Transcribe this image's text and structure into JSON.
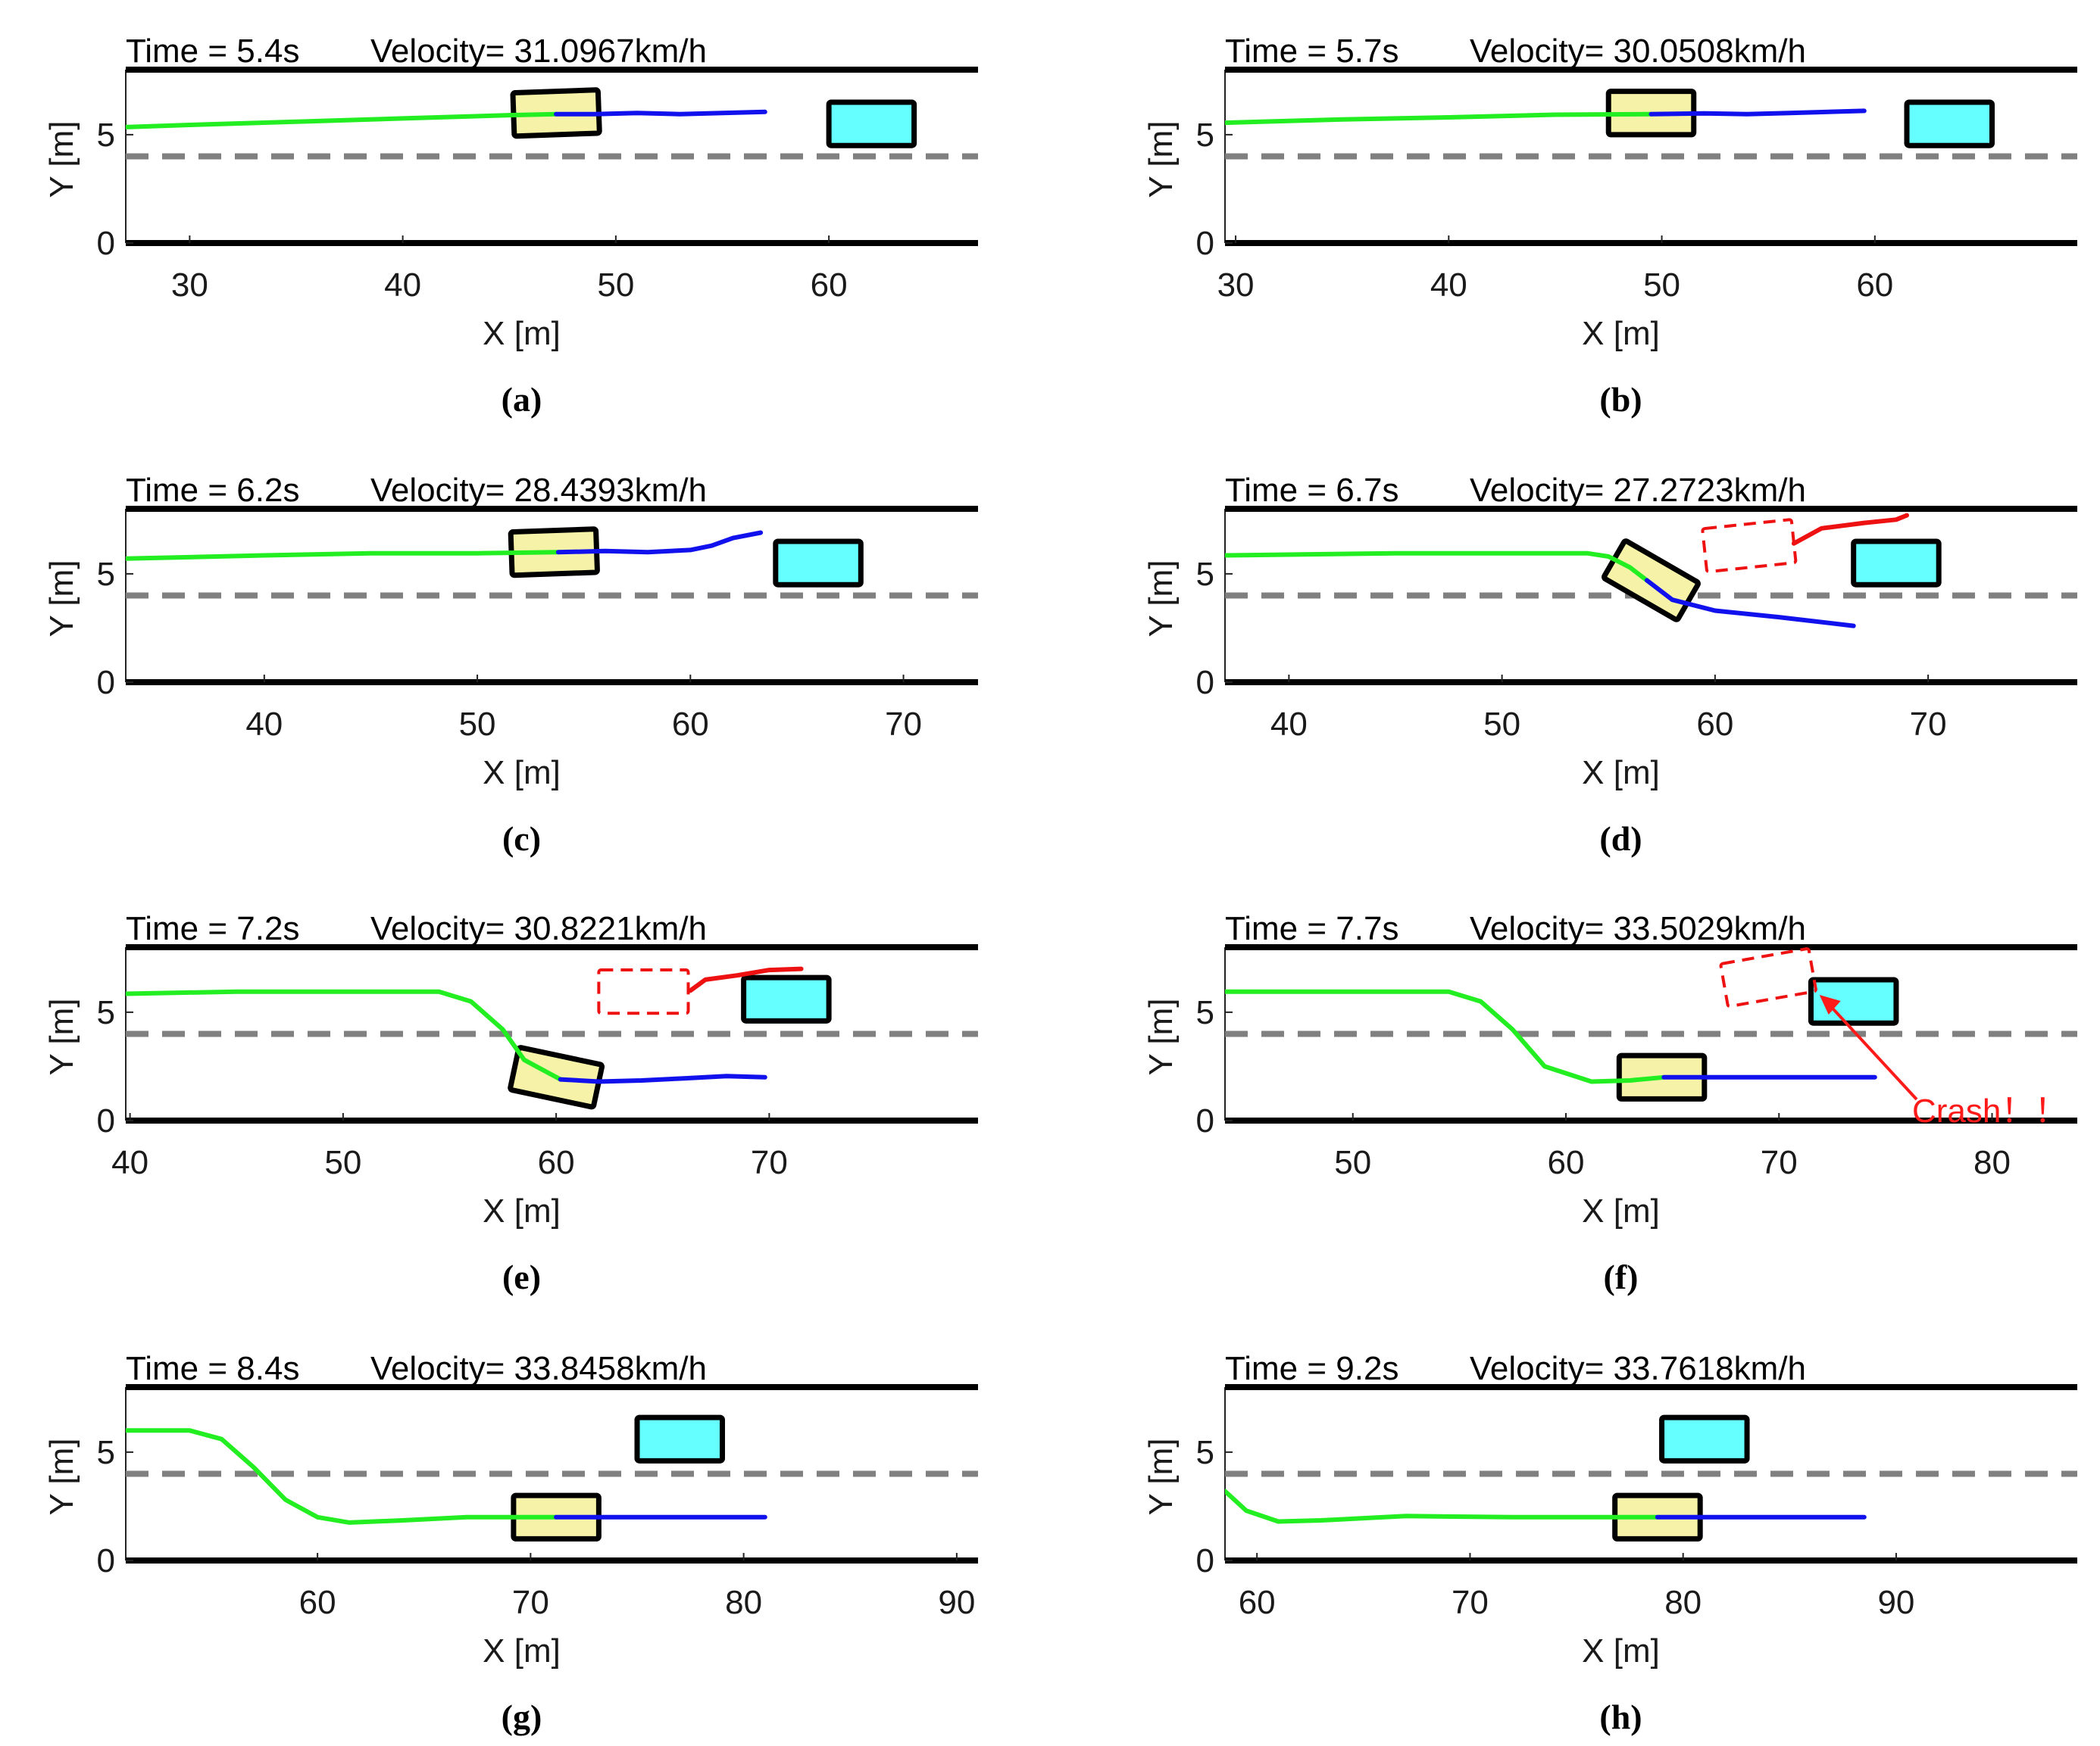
{
  "figure": {
    "colors": {
      "ego_history": "#22ee22",
      "ego_plan": "#1111ee",
      "obstacle_pred": "#ee1111",
      "ego_box": "#f6f3a8",
      "obstacle_box": "#66ffff",
      "lane_dash": "#808080",
      "road_edge": "#000000",
      "crash_text": "#ff1a1a"
    },
    "units": {
      "x": "m",
      "y": "m",
      "velocity": "km/h"
    }
  },
  "chart_data": [
    {
      "type": "line",
      "caption": "(a)",
      "time_text": "Time = 5.4s",
      "velocity_text": "Velocity= 31.0967km/h",
      "xlabel": "X [m]",
      "ylabel": "Y [m]",
      "xlim": [
        27,
        67
      ],
      "ylim": [
        0,
        8
      ],
      "xticks": [
        30,
        40,
        50,
        60
      ],
      "yticks": [
        0,
        5
      ],
      "road_edges": [
        0,
        8
      ],
      "lane_divider": 4,
      "series": [
        {
          "name": "ego-history",
          "role": "history",
          "points": [
            [
              27,
              5.35
            ],
            [
              30,
              5.45
            ],
            [
              35,
              5.6
            ],
            [
              40,
              5.75
            ],
            [
              45,
              5.9
            ],
            [
              47.2,
              5.95
            ]
          ]
        },
        {
          "name": "ego-planned",
          "role": "plan",
          "points": [
            [
              47.2,
              5.95
            ],
            [
              49,
              5.95
            ],
            [
              51,
              6.0
            ],
            [
              53,
              5.95
            ],
            [
              55,
              6.0
            ],
            [
              57,
              6.05
            ]
          ]
        }
      ],
      "ego": {
        "x": 47.2,
        "y": 6.0,
        "angle_deg": 2,
        "length": 4,
        "width": 2
      },
      "obstacle": {
        "x": 62,
        "y": 5.5,
        "length": 4,
        "width": 2
      }
    },
    {
      "type": "line",
      "caption": "(b)",
      "time_text": "Time = 5.7s",
      "velocity_text": "Velocity= 30.0508km/h",
      "xlabel": "X [m]",
      "ylabel": "Y [m]",
      "xlim": [
        29.5,
        69.5
      ],
      "ylim": [
        0,
        8
      ],
      "xticks": [
        30,
        40,
        50,
        60
      ],
      "yticks": [
        0,
        5
      ],
      "road_edges": [
        0,
        8
      ],
      "lane_divider": 4,
      "series": [
        {
          "name": "ego-history",
          "role": "history",
          "points": [
            [
              29.5,
              5.55
            ],
            [
              35,
              5.7
            ],
            [
              40,
              5.8
            ],
            [
              45,
              5.92
            ],
            [
              49.5,
              5.95
            ]
          ]
        },
        {
          "name": "ego-planned",
          "role": "plan",
          "points": [
            [
              49.5,
              5.95
            ],
            [
              52,
              5.98
            ],
            [
              54,
              5.95
            ],
            [
              56,
              6.0
            ],
            [
              59.5,
              6.1
            ]
          ]
        }
      ],
      "ego": {
        "x": 49.5,
        "y": 6.0,
        "angle_deg": 0,
        "length": 4,
        "width": 2
      },
      "obstacle": {
        "x": 63.5,
        "y": 5.5,
        "length": 4,
        "width": 2
      }
    },
    {
      "type": "line",
      "caption": "(c)",
      "time_text": "Time = 6.2s",
      "velocity_text": "Velocity= 28.4393km/h",
      "xlabel": "X [m]",
      "ylabel": "Y [m]",
      "xlim": [
        33.5,
        73.5
      ],
      "ylim": [
        0,
        8
      ],
      "xticks": [
        40,
        50,
        60,
        70
      ],
      "yticks": [
        0,
        5
      ],
      "road_edges": [
        0,
        8
      ],
      "lane_divider": 4,
      "series": [
        {
          "name": "ego-history",
          "role": "history",
          "points": [
            [
              33.5,
              5.7
            ],
            [
              40,
              5.85
            ],
            [
              45,
              5.95
            ],
            [
              50,
              5.95
            ],
            [
              53.8,
              6.0
            ]
          ]
        },
        {
          "name": "ego-planned",
          "role": "plan",
          "points": [
            [
              53.8,
              6.0
            ],
            [
              56,
              6.05
            ],
            [
              58,
              6.0
            ],
            [
              60,
              6.1
            ],
            [
              61,
              6.3
            ],
            [
              62,
              6.65
            ],
            [
              63.3,
              6.9
            ]
          ]
        }
      ],
      "ego": {
        "x": 53.6,
        "y": 6.0,
        "angle_deg": 2,
        "length": 4,
        "width": 2
      },
      "obstacle": {
        "x": 66,
        "y": 5.5,
        "length": 4,
        "width": 2
      }
    },
    {
      "type": "line",
      "caption": "(d)",
      "time_text": "Time = 6.7s",
      "velocity_text": "Velocity= 27.2723km/h",
      "xlabel": "X [m]",
      "ylabel": "Y [m]",
      "xlim": [
        37,
        77
      ],
      "ylim": [
        0,
        8
      ],
      "xticks": [
        40,
        50,
        60,
        70
      ],
      "yticks": [
        0,
        5
      ],
      "road_edges": [
        0,
        8
      ],
      "lane_divider": 4,
      "series": [
        {
          "name": "ego-history",
          "role": "history",
          "points": [
            [
              37,
              5.85
            ],
            [
              45,
              5.95
            ],
            [
              50,
              5.95
            ],
            [
              54,
              5.95
            ],
            [
              55,
              5.8
            ],
            [
              56,
              5.3
            ],
            [
              56.8,
              4.7
            ]
          ]
        },
        {
          "name": "ego-planned",
          "role": "plan",
          "points": [
            [
              56.8,
              4.7
            ],
            [
              58,
              3.8
            ],
            [
              60,
              3.3
            ],
            [
              63,
              3.0
            ],
            [
              66.5,
              2.6
            ]
          ]
        },
        {
          "name": "obstacle-predicted",
          "role": "prediction",
          "points": [
            [
              63.7,
              6.4
            ],
            [
              65,
              7.1
            ],
            [
              67,
              7.35
            ],
            [
              68.5,
              7.5
            ],
            [
              69,
              7.7
            ]
          ]
        }
      ],
      "ego": {
        "x": 57,
        "y": 4.7,
        "angle_deg": -30,
        "length": 4,
        "width": 2
      },
      "obstacle": {
        "x": 68.5,
        "y": 5.5,
        "length": 4,
        "width": 2
      },
      "predicted_box": {
        "x": 61.6,
        "y": 6.3,
        "angle_deg": 6,
        "length": 4.2,
        "width": 2
      }
    },
    {
      "type": "line",
      "caption": "(e)",
      "time_text": "Time = 7.2s",
      "velocity_text": "Velocity= 30.8221km/h",
      "xlabel": "X [m]",
      "ylabel": "Y [m]",
      "xlim": [
        39.8,
        79.8
      ],
      "ylim": [
        0,
        8
      ],
      "xticks": [
        40,
        50,
        60,
        70
      ],
      "yticks": [
        0,
        5
      ],
      "road_edges": [
        0,
        8
      ],
      "lane_divider": 4,
      "series": [
        {
          "name": "ego-history",
          "role": "history",
          "points": [
            [
              39.8,
              5.85
            ],
            [
              45,
              5.95
            ],
            [
              50,
              5.95
            ],
            [
              54.5,
              5.95
            ],
            [
              56,
              5.5
            ],
            [
              57.5,
              4.2
            ],
            [
              58.5,
              2.8
            ],
            [
              60.2,
              1.9
            ]
          ]
        },
        {
          "name": "ego-planned",
          "role": "plan",
          "points": [
            [
              60.2,
              1.9
            ],
            [
              62,
              1.8
            ],
            [
              64,
              1.85
            ],
            [
              66,
              1.95
            ],
            [
              68,
              2.05
            ],
            [
              69.8,
              2.0
            ]
          ]
        },
        {
          "name": "obstacle-predicted",
          "role": "prediction",
          "points": [
            [
              66.3,
              6.0
            ],
            [
              67,
              6.5
            ],
            [
              68.5,
              6.7
            ],
            [
              70,
              6.95
            ],
            [
              71.5,
              7.0
            ]
          ]
        }
      ],
      "ego": {
        "x": 60,
        "y": 2.0,
        "angle_deg": -12,
        "length": 4,
        "width": 2
      },
      "obstacle": {
        "x": 70.8,
        "y": 5.6,
        "length": 4,
        "width": 2
      },
      "predicted_box": {
        "x": 64.1,
        "y": 5.95,
        "angle_deg": 0,
        "length": 4.2,
        "width": 2
      }
    },
    {
      "type": "line",
      "caption": "(f)",
      "time_text": "Time = 7.7s",
      "velocity_text": "Velocity= 33.5029km/h",
      "xlabel": "X [m]",
      "ylabel": "Y [m]",
      "xlim": [
        44,
        84
      ],
      "ylim": [
        0,
        8
      ],
      "xticks": [
        50,
        60,
        70,
        80
      ],
      "yticks": [
        0,
        5
      ],
      "road_edges": [
        0,
        8
      ],
      "lane_divider": 4,
      "series": [
        {
          "name": "ego-history",
          "role": "history",
          "points": [
            [
              44,
              5.95
            ],
            [
              50,
              5.95
            ],
            [
              54.5,
              5.95
            ],
            [
              56,
              5.5
            ],
            [
              57.5,
              4.2
            ],
            [
              59,
              2.5
            ],
            [
              61.2,
              1.8
            ],
            [
              63,
              1.85
            ],
            [
              64.6,
              2.0
            ]
          ]
        },
        {
          "name": "ego-planned",
          "role": "plan",
          "points": [
            [
              64.6,
              2.0
            ],
            [
              68,
              2.0
            ],
            [
              72,
              2.0
            ],
            [
              74.5,
              2.0
            ]
          ]
        }
      ],
      "ego": {
        "x": 64.5,
        "y": 2.0,
        "angle_deg": 0,
        "length": 4,
        "width": 2
      },
      "obstacle": {
        "x": 73.5,
        "y": 5.5,
        "length": 4,
        "width": 2
      },
      "predicted_box": {
        "x": 69.5,
        "y": 6.6,
        "angle_deg": 10,
        "length": 4.2,
        "width": 2
      },
      "annotation": {
        "text": "Crash！！",
        "arrow_to": [
          71.9,
          5.8
        ]
      }
    },
    {
      "type": "line",
      "caption": "(g)",
      "time_text": "Time = 8.4s",
      "velocity_text": "Velocity= 33.8458km/h",
      "xlabel": "X [m]",
      "ylabel": "Y [m]",
      "xlim": [
        51,
        91
      ],
      "ylim": [
        0,
        8
      ],
      "xticks": [
        60,
        70,
        80,
        90
      ],
      "yticks": [
        0,
        5
      ],
      "road_edges": [
        0,
        8
      ],
      "lane_divider": 4,
      "series": [
        {
          "name": "ego-history",
          "role": "history",
          "points": [
            [
              51,
              6.0
            ],
            [
              54,
              6.0
            ],
            [
              55.5,
              5.6
            ],
            [
              57,
              4.3
            ],
            [
              58.5,
              2.8
            ],
            [
              60,
              2.0
            ],
            [
              61.5,
              1.75
            ],
            [
              64,
              1.85
            ],
            [
              67,
              2.0
            ],
            [
              71.2,
              2.0
            ]
          ]
        },
        {
          "name": "ego-planned",
          "role": "plan",
          "points": [
            [
              71.2,
              2.0
            ],
            [
              75,
              2.0
            ],
            [
              81,
              2.0
            ]
          ]
        }
      ],
      "ego": {
        "x": 71.2,
        "y": 2.0,
        "angle_deg": 0,
        "length": 4,
        "width": 2
      },
      "obstacle": {
        "x": 77,
        "y": 5.6,
        "length": 4,
        "width": 2
      }
    },
    {
      "type": "line",
      "caption": "(h)",
      "time_text": "Time = 9.2s",
      "velocity_text": "Velocity= 33.7618km/h",
      "xlabel": "X [m]",
      "ylabel": "Y [m]",
      "xlim": [
        58.5,
        98.5
      ],
      "ylim": [
        0,
        8
      ],
      "xticks": [
        60,
        70,
        80,
        90
      ],
      "yticks": [
        0,
        5
      ],
      "road_edges": [
        0,
        8
      ],
      "lane_divider": 4,
      "series": [
        {
          "name": "ego-history",
          "role": "history",
          "points": [
            [
              58.5,
              3.2
            ],
            [
              59.5,
              2.3
            ],
            [
              61,
              1.8
            ],
            [
              63,
              1.85
            ],
            [
              67,
              2.05
            ],
            [
              72,
              2.0
            ],
            [
              78.8,
              2.0
            ]
          ]
        },
        {
          "name": "ego-planned",
          "role": "plan",
          "points": [
            [
              78.8,
              2.0
            ],
            [
              83,
              2.0
            ],
            [
              88.5,
              2.0
            ]
          ]
        }
      ],
      "ego": {
        "x": 78.8,
        "y": 2.0,
        "angle_deg": 0,
        "length": 4,
        "width": 2
      },
      "obstacle": {
        "x": 81,
        "y": 5.6,
        "length": 4,
        "width": 2
      }
    }
  ]
}
